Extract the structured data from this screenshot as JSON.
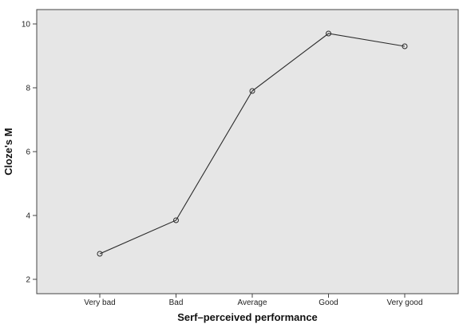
{
  "chart_data": {
    "type": "line",
    "title": "",
    "xlabel": "Serf–perceived performance",
    "ylabel": "Cloze's M",
    "categories": [
      "Very bad",
      "Bad",
      "Average",
      "Good",
      "Very good"
    ],
    "values": [
      2.8,
      3.85,
      7.9,
      9.7,
      9.3
    ],
    "yticks": [
      "2",
      "4",
      "6",
      "8",
      "10"
    ],
    "ylim": [
      1.55,
      10.45
    ],
    "grid": false,
    "marker": "open-circle",
    "colors": {
      "plot_background": "#e6e6e6",
      "line": "#2b2b2b"
    }
  }
}
